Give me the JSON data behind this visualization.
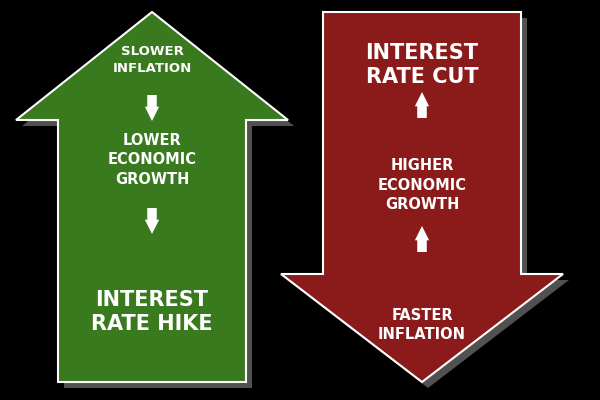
{
  "background_color": "#000000",
  "left_arrow": {
    "color": "#3a7a1e",
    "direction": "up",
    "label_main": "INTEREST\nRATE HIKE",
    "label_top": "SLOWER\nINFLATION",
    "label_mid": "LOWER\nECONOMIC\nGROWTH",
    "text_color": "#ffffff"
  },
  "right_arrow": {
    "color": "#8b1a1a",
    "direction": "down",
    "label_main": "INTEREST\nRATE CUT",
    "label_mid": "HIGHER\nECONOMIC\nGROWTH",
    "label_bottom": "FASTER\nINFLATION",
    "text_color": "#ffffff"
  },
  "shadow_color": "#888888",
  "small_arrow_color": "#ffffff"
}
